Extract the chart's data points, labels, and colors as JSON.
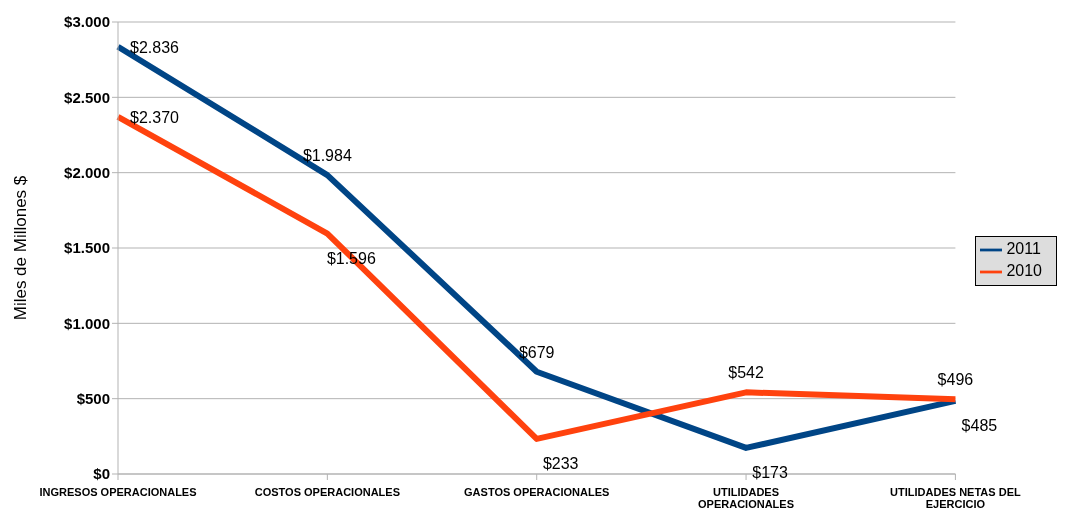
{
  "chart_data": {
    "type": "line",
    "ylabel": "Miles de Millones $",
    "categories": [
      "INGRESOS OPERACIONALES",
      "COSTOS OPERACIONALES",
      "GASTOS OPERACIONALES",
      "UTILIDADES OPERACIONALES",
      "UTILIDADES NETAS DEL EJERCICIO"
    ],
    "series": [
      {
        "name": "2011",
        "color": "#004586",
        "values": [
          2836,
          1984,
          679,
          173,
          485
        ],
        "value_labels": [
          "$2.836",
          "$1.984",
          "$679",
          "$173",
          "$485"
        ]
      },
      {
        "name": "2010",
        "color": "#ff420e",
        "values": [
          2370,
          1596,
          233,
          542,
          496
        ],
        "value_labels": [
          "$2.370",
          "$1.596",
          "$233",
          "$542",
          "$496"
        ]
      }
    ],
    "ylim": [
      0,
      3000
    ],
    "yticks": [
      {
        "value": 0,
        "label": "$0"
      },
      {
        "value": 500,
        "label": "$500"
      },
      {
        "value": 1000,
        "label": "$1.000"
      },
      {
        "value": 1500,
        "label": "$1.500"
      },
      {
        "value": 2000,
        "label": "$2.000"
      },
      {
        "value": 2500,
        "label": "$2.500"
      },
      {
        "value": 3000,
        "label": "$3.000"
      }
    ],
    "grid": "y",
    "legend": "right",
    "marker": "none",
    "line_style": "solid"
  }
}
